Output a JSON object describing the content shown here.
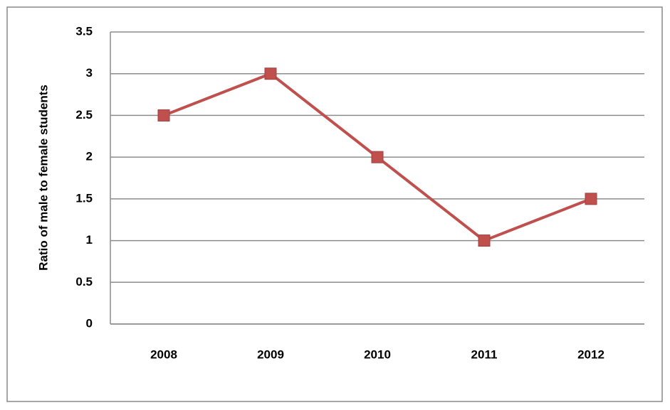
{
  "chart_data": {
    "type": "line",
    "y_label": "Ratio of male to female students",
    "categories": [
      "2008",
      "2009",
      "2010",
      "2011",
      "2012"
    ],
    "values": [
      2.5,
      3,
      2,
      1,
      1.5
    ],
    "color": "#c0504d",
    "ylim": [
      0,
      3.5
    ],
    "yticks": [
      0,
      0.5,
      1,
      1.5,
      2,
      2.5,
      3,
      3.5
    ],
    "grid": true
  }
}
